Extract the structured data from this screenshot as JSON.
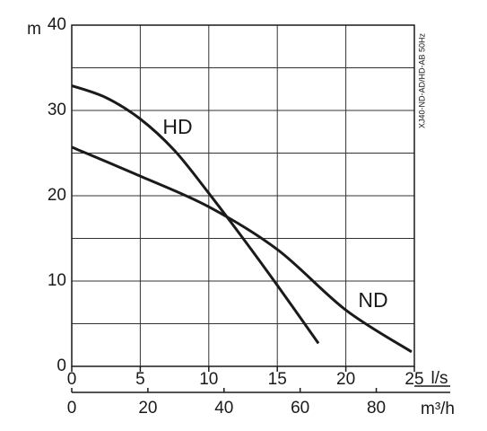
{
  "chart_data": {
    "type": "line",
    "ylabel": "m",
    "xlabel": "l/s",
    "x2label": "m³/h",
    "annotation": "XJ40-ND-AD/HD-AB 50Hz",
    "xlim": [
      0,
      25
    ],
    "xticks": [
      0,
      5,
      10,
      15,
      20,
      25
    ],
    "ylim": [
      0,
      40
    ],
    "yticks": [
      0,
      10,
      20,
      30,
      40
    ],
    "yminor_ticks": [
      5,
      15,
      25,
      35
    ],
    "x2lim": [
      0,
      90
    ],
    "x2ticks": [
      0,
      20,
      40,
      60,
      80
    ],
    "grid": true,
    "series": [
      {
        "name": "HD",
        "color": "#1a1a1a",
        "x": [
          0,
          2.5,
          5,
          7.5,
          10,
          12.5,
          15,
          18
        ],
        "values": [
          32.9,
          31.5,
          29,
          25.3,
          20.3,
          15,
          9.5,
          2.7
        ]
      },
      {
        "name": "ND",
        "color": "#1a1a1a",
        "x": [
          0,
          5,
          10,
          15,
          20,
          24.8
        ],
        "values": [
          25.7,
          22.3,
          18.7,
          13.7,
          6.6,
          1.7
        ]
      }
    ]
  }
}
